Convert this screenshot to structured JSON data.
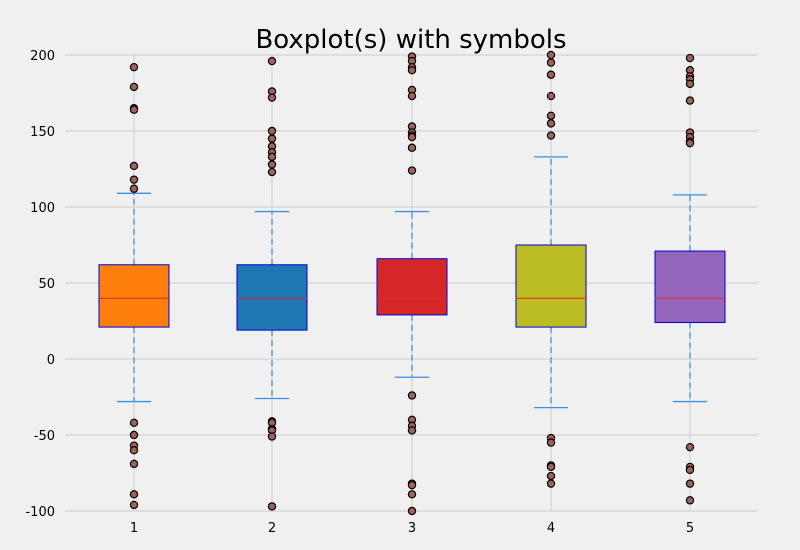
{
  "chart_data": {
    "type": "boxplot",
    "title": "Boxplot(s) with symbols",
    "xlabel": "",
    "ylabel": "",
    "categories": [
      "1",
      "2",
      "3",
      "4",
      "5"
    ],
    "ylim": [
      -100,
      200
    ],
    "yticks": [
      -100,
      -50,
      0,
      50,
      100,
      150,
      200
    ],
    "grid": true,
    "box_colors": [
      "#ff7f0e",
      "#1f77b4",
      "#d62728",
      "#bcbd22",
      "#9467bd"
    ],
    "box_edge_color": "#0000cc",
    "median_color": "#ee2222",
    "whisker_color": "#3b8ee0",
    "flier_color": "#a0625a",
    "boxes": [
      {
        "label": "1",
        "q1": 21,
        "median": 40,
        "q3": 62,
        "whislo": -28,
        "whishi": 109,
        "fliers": [
          192,
          179,
          165,
          164,
          127,
          118,
          112,
          -42,
          -50,
          -57,
          -60,
          -69,
          -89,
          -96
        ]
      },
      {
        "label": "2",
        "q1": 19,
        "median": 40,
        "q3": 62,
        "whislo": -26,
        "whishi": 97,
        "fliers": [
          196,
          176,
          172,
          150,
          145,
          140,
          136,
          133,
          128,
          123,
          -41,
          -42,
          -46,
          -47,
          -51,
          -97
        ]
      },
      {
        "label": "3",
        "q1": 29,
        "median": 40,
        "q3": 66,
        "whislo": -12,
        "whishi": 97,
        "fliers": [
          199,
          196,
          192,
          190,
          177,
          173,
          153,
          149,
          147,
          146,
          139,
          124,
          -24,
          -40,
          -44,
          -47,
          -82,
          -83,
          -89,
          -100
        ]
      },
      {
        "label": "4",
        "q1": 21,
        "median": 40,
        "q3": 75,
        "whislo": -32,
        "whishi": 133,
        "fliers": [
          200,
          195,
          187,
          173,
          160,
          155,
          147,
          -52,
          -55,
          -70,
          -71,
          -77,
          -82
        ]
      },
      {
        "label": "5",
        "q1": 24,
        "median": 40,
        "q3": 71,
        "whislo": -28,
        "whishi": 108,
        "fliers": [
          198,
          190,
          186,
          184,
          181,
          170,
          149,
          146,
          143,
          142,
          -58,
          -71,
          -73,
          -82,
          -93
        ]
      }
    ]
  }
}
